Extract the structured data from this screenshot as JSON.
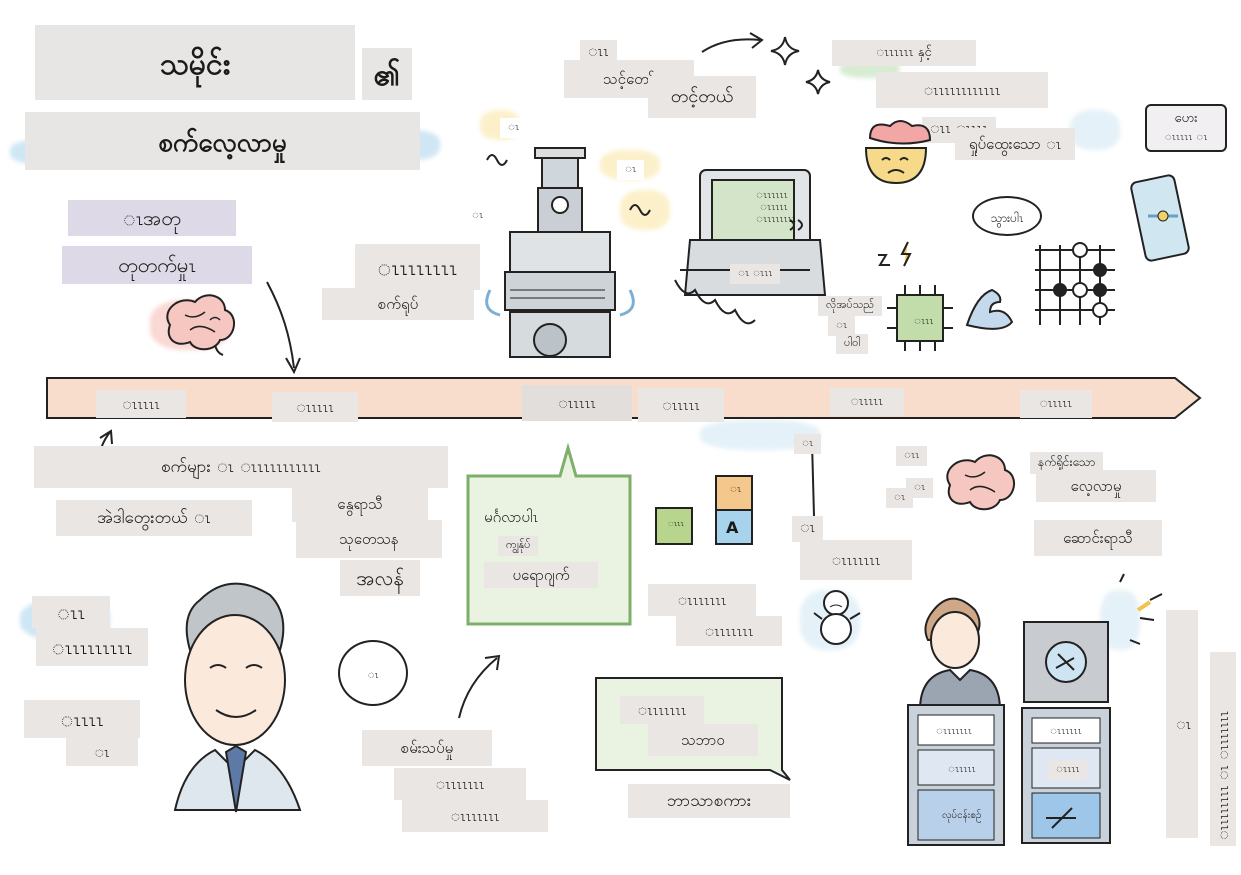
{
  "title": {
    "line1": "သမိုင်း",
    "line1_suffix": "၏",
    "line2": "စက်လေ့လာမှု"
  },
  "left_top": {
    "line1": "ၤအတု",
    "line2": "တုတက်မှုၤ"
  },
  "machine_label": {
    "line1": "ၤၤၤၤၤၤၤၤ",
    "line2": "စက်ရုပ်"
  },
  "top_notes": {
    "a": "ၤၤ",
    "b": "သင့်တော်",
    "c": "တင့်တယ်"
  },
  "top_right": {
    "a": "ၤၤၤၤၤၤ နှင့်",
    "b": "ၤၤၤၤၤၤၤၤၤၤၤၤ",
    "c": "ၤၤ ၤၤၤၤ",
    "d": "ရှုပ်ထွေးသော ၤ"
  },
  "speech": {
    "hello": "ဟေး",
    "hello2": "ၤၤၤၤၤ ၤ",
    "go": "သွားပါၤ",
    "q": "ၤ"
  },
  "chip_notes": {
    "a": "လိုအပ်သည်",
    "b": "ၤ",
    "c": "ပါဝါ",
    "chip": "ၤၤၤ"
  },
  "computer": {
    "screen1": "ၤၤၤၤၤၤ",
    "screen2": "ၤၤၤၤၤ",
    "screen3": "ၤၤၤၤၤၤၤၤ",
    "base": "ၤ ၤၤၤ"
  },
  "timeline": {
    "years": [
      "ၤၤၤၤၤ",
      "ၤၤၤၤၤ",
      "ၤၤၤၤၤ",
      "ၤၤၤၤၤ",
      "ၤၤၤၤၤ",
      "ၤၤၤၤၤ"
    ]
  },
  "left_bottom": {
    "line1": "စက်များ ၤ ၤၤၤၤၤၤၤၤၤၤၤ",
    "line2": "အဲဒါတွေးတယ် ၤ",
    "n1": "ၤၤ",
    "n2": "ၤၤၤၤၤၤၤၤၤ",
    "n3": "ၤၤၤၤ",
    "n4": "ၤ"
  },
  "center_notes": {
    "a": "နွေရာသီ",
    "b": "သုတေသန",
    "c": "အလန်",
    "d": "စမ်းသပ်မှု",
    "e": "ၤၤၤၤၤၤၤ",
    "f": "ၤၤၤၤၤၤၤ"
  },
  "green_box": {
    "a": "မင်္ဂလာပါၤ",
    "b": "ကျွန်ုပ်",
    "c": "ပရောဂျက်"
  },
  "blocks": {
    "a": "ၤၤၤ",
    "b": "ၤ",
    "c": "A",
    "note1": "ၤၤၤၤၤၤၤ",
    "note2": "ၤၤၤၤၤၤၤ"
  },
  "lang_box": {
    "a": "ၤၤၤၤၤၤၤ",
    "b": "သဘာဝ",
    "c": "ဘာသာစကား"
  },
  "winter": {
    "a": "ၤ",
    "b": "ၤ",
    "c": "ၤၤၤၤၤၤၤ"
  },
  "right_bottom": {
    "a": "နက်ရှိုင်းသော",
    "b": "လေ့လာမှု",
    "c": "ဆောင်းရာသီ",
    "d": "ၤၤ",
    "e": "ၤ",
    "f": "ၤ"
  },
  "podium": {
    "a1": "ၤၤၤၤၤၤၤ",
    "a2": "ၤၤၤၤၤ",
    "a3": "လုပ်ငန်းစဉ်",
    "b1": "ၤၤၤၤၤၤ",
    "b2": "ၤၤၤၤ"
  },
  "vertical_note": {
    "a": "ၤ",
    "b": "ၤၤၤၤၤၤၤၤ ၤ ၤၤၤၤၤၤၤ"
  }
}
